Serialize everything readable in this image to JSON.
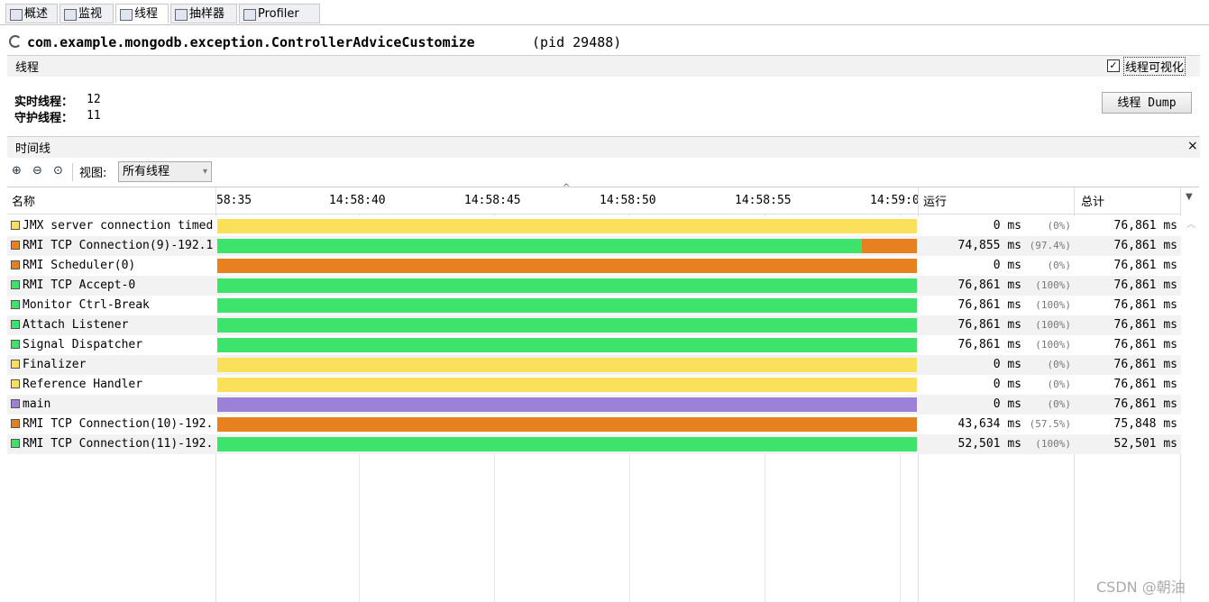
{
  "tabs": [
    "概述",
    "监视",
    "线程",
    "抽样器",
    "Profiler"
  ],
  "header": {
    "title": "com.example.mongodb.exception.ControllerAdviceCustomize",
    "pid": "(pid 29488)"
  },
  "threads_panel": {
    "title": "线程",
    "visualize_checkbox": "线程可视化",
    "live_label": "实时线程：",
    "live": "12",
    "daemon_label": "守护线程：",
    "daemon": "11",
    "dump_button": "线程 Dump"
  },
  "timeline": {
    "title": "时间线",
    "view_label": "视图:",
    "view_option": "所有线程",
    "columns": {
      "name": "名称",
      "running": "运行",
      "total": "总计"
    },
    "time_ticks": [
      "58:35",
      "14:58:40",
      "14:58:45",
      "14:58:50",
      "14:58:55",
      "14:59:0"
    ]
  },
  "rows": [
    {
      "name": "JMX server connection timed",
      "color": "#fbe05c",
      "running": "0 ms",
      "percent": "(0%)",
      "total": "76,861 ms"
    },
    {
      "name": "RMI TCP Connection(9)-192.1",
      "color": "#e7801f",
      "running": "74,855 ms",
      "percent": "(97.4%)",
      "total": "76,861 ms"
    },
    {
      "name": "RMI Scheduler(0)",
      "color": "#e7801f",
      "running": "0 ms",
      "percent": "(0%)",
      "total": "76,861 ms"
    },
    {
      "name": "RMI TCP Accept-0",
      "color": "#3de36a",
      "running": "76,861 ms",
      "percent": "(100%)",
      "total": "76,861 ms"
    },
    {
      "name": "Monitor Ctrl-Break",
      "color": "#3de36a",
      "running": "76,861 ms",
      "percent": "(100%)",
      "total": "76,861 ms"
    },
    {
      "name": "Attach Listener",
      "color": "#3de36a",
      "running": "76,861 ms",
      "percent": "(100%)",
      "total": "76,861 ms"
    },
    {
      "name": "Signal Dispatcher",
      "color": "#3de36a",
      "running": "76,861 ms",
      "percent": "(100%)",
      "total": "76,861 ms"
    },
    {
      "name": "Finalizer",
      "color": "#fbe05c",
      "running": "0 ms",
      "percent": "(0%)",
      "total": "76,861 ms"
    },
    {
      "name": "Reference Handler",
      "color": "#fbe05c",
      "running": "0 ms",
      "percent": "(0%)",
      "total": "76,861 ms"
    },
    {
      "name": "main",
      "color": "#9b82d8",
      "running": "0 ms",
      "percent": "(0%)",
      "total": "76,861 ms"
    },
    {
      "name": "RMI TCP Connection(10)-192.",
      "color": "#e7801f",
      "running": "43,634 ms",
      "percent": "(57.5%)",
      "total": "75,848 ms"
    },
    {
      "name": "RMI TCP Connection(11)-192.",
      "color": "#3de36a",
      "running": "52,501 ms",
      "percent": "(100%)",
      "total": "52,501 ms"
    }
  ],
  "watermark": "CSDN @朝油"
}
